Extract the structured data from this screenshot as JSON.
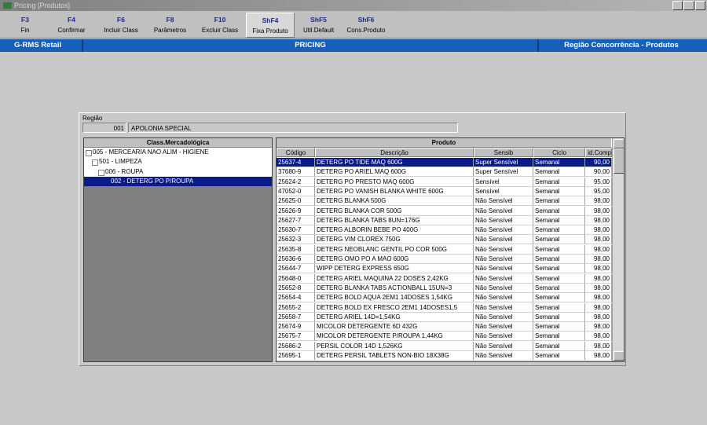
{
  "window": {
    "title": "Pricing [Produtos]"
  },
  "toolbar": [
    {
      "key": "F3",
      "label": "Fin"
    },
    {
      "key": "F4",
      "label": "Confirmar"
    },
    {
      "key": "F6",
      "label": "Incluir Class"
    },
    {
      "key": "F8",
      "label": "Parâmetros"
    },
    {
      "key": "F10",
      "label": "Excluir Class"
    },
    {
      "key": "ShF4",
      "label": "Fixa Produto"
    },
    {
      "key": "ShF5",
      "label": "Util.Default"
    },
    {
      "key": "ShF6",
      "label": "Cons.Produto"
    }
  ],
  "header": {
    "left": "G-RMS Retail",
    "center": "PRICING",
    "right": "Região Concorrência - Produtos"
  },
  "region": {
    "label": "Região",
    "code": "001",
    "name": "APOLONIA SPECIAL"
  },
  "tree": {
    "header": "Class.Mercadológica",
    "nodes": [
      "005 - MERCEARIA NAO ALIM - HIGIENE",
      "501 - LIMPEZA",
      "006 - ROUPA",
      "002 - DETERG PO P/ROUPA"
    ]
  },
  "table": {
    "title": "Produto",
    "columns": [
      "Código",
      "Descrição",
      "Sensib",
      "Ciclo",
      "id.Comp"
    ],
    "rows": [
      [
        "25637-4",
        "DETERG PO TIDE MAQ 600G",
        "Super Sensível",
        "Semanal",
        "90,00"
      ],
      [
        "37680-9",
        "DETERG PO ARIEL MAQ 600G",
        "Super Sensível",
        "Semanal",
        "90,00"
      ],
      [
        "25624-2",
        "DETERG PO PRESTO MAQ 600G",
        "Sensível",
        "Semanal",
        "95,00"
      ],
      [
        "47052-0",
        "DETERG PO VANISH BLANKA WHITE 600G",
        "Sensível",
        "Semanal",
        "95,00"
      ],
      [
        "25625-0",
        "DETERG BLANKA 500G",
        "Não Sensível",
        "Semanal",
        "98,00"
      ],
      [
        "25626-9",
        "DETERG BLANKA COR 500G",
        "Não Sensível",
        "Semanal",
        "98,00"
      ],
      [
        "25627-7",
        "DETERG BLANKA TABS 8UN=176G",
        "Não Sensível",
        "Semanal",
        "98,00"
      ],
      [
        "25630-7",
        "DETERG ALBORIN BEBE PO 400G",
        "Não Sensível",
        "Semanal",
        "98,00"
      ],
      [
        "25632-3",
        "DETERG VIM CLOREX 750G",
        "Não Sensível",
        "Semanal",
        "98,00"
      ],
      [
        "25635-8",
        "DETERG NEOBLANC GENTIL PO COR 500G",
        "Não Sensível",
        "Semanal",
        "98,00"
      ],
      [
        "25636-6",
        "DETERG OMO PO A MAO 600G",
        "Não Sensível",
        "Semanal",
        "98,00"
      ],
      [
        "25644-7",
        "WIPP DETERG EXPRESS 650G",
        "Não Sensível",
        "Semanal",
        "98,00"
      ],
      [
        "25648-0",
        "DETERG ARIEL MAQUINA 22 DOSES 2,42KG",
        "Não Sensível",
        "Semanal",
        "98,00"
      ],
      [
        "25652-8",
        "DETERG BLANKA TABS ACTIONBALL 15UN=3",
        "Não Sensível",
        "Semanal",
        "98,00"
      ],
      [
        "25654-4",
        "DETERG BOLD AQUA 2EM1 14DOSES 1,54KG",
        "Não Sensível",
        "Semanal",
        "98,00"
      ],
      [
        "25655-2",
        "DETERG BOLD EX FRESCO 2EM1 14DOSES1,5",
        "Não Sensível",
        "Semanal",
        "98,00"
      ],
      [
        "25658-7",
        "DETERG ARIEL 14D=1,54KG",
        "Não Sensível",
        "Semanal",
        "98,00"
      ],
      [
        "25674-9",
        "MICOLOR DETERGENTE 6D 432G",
        "Não Sensível",
        "Semanal",
        "98,00"
      ],
      [
        "25675-7",
        "MICOLOR DETERGENTE P/ROUPA 1,44KG",
        "Não Sensível",
        "Semanal",
        "98,00"
      ],
      [
        "25686-2",
        "PERSIL COLOR 14D 1,526KG",
        "Não Sensível",
        "Semanal",
        "98,00"
      ],
      [
        "25695-1",
        "DETERG PERSIL TABLETS NON-BIO 18X38G",
        "Não Sensível",
        "Semanal",
        "98,00"
      ]
    ]
  }
}
